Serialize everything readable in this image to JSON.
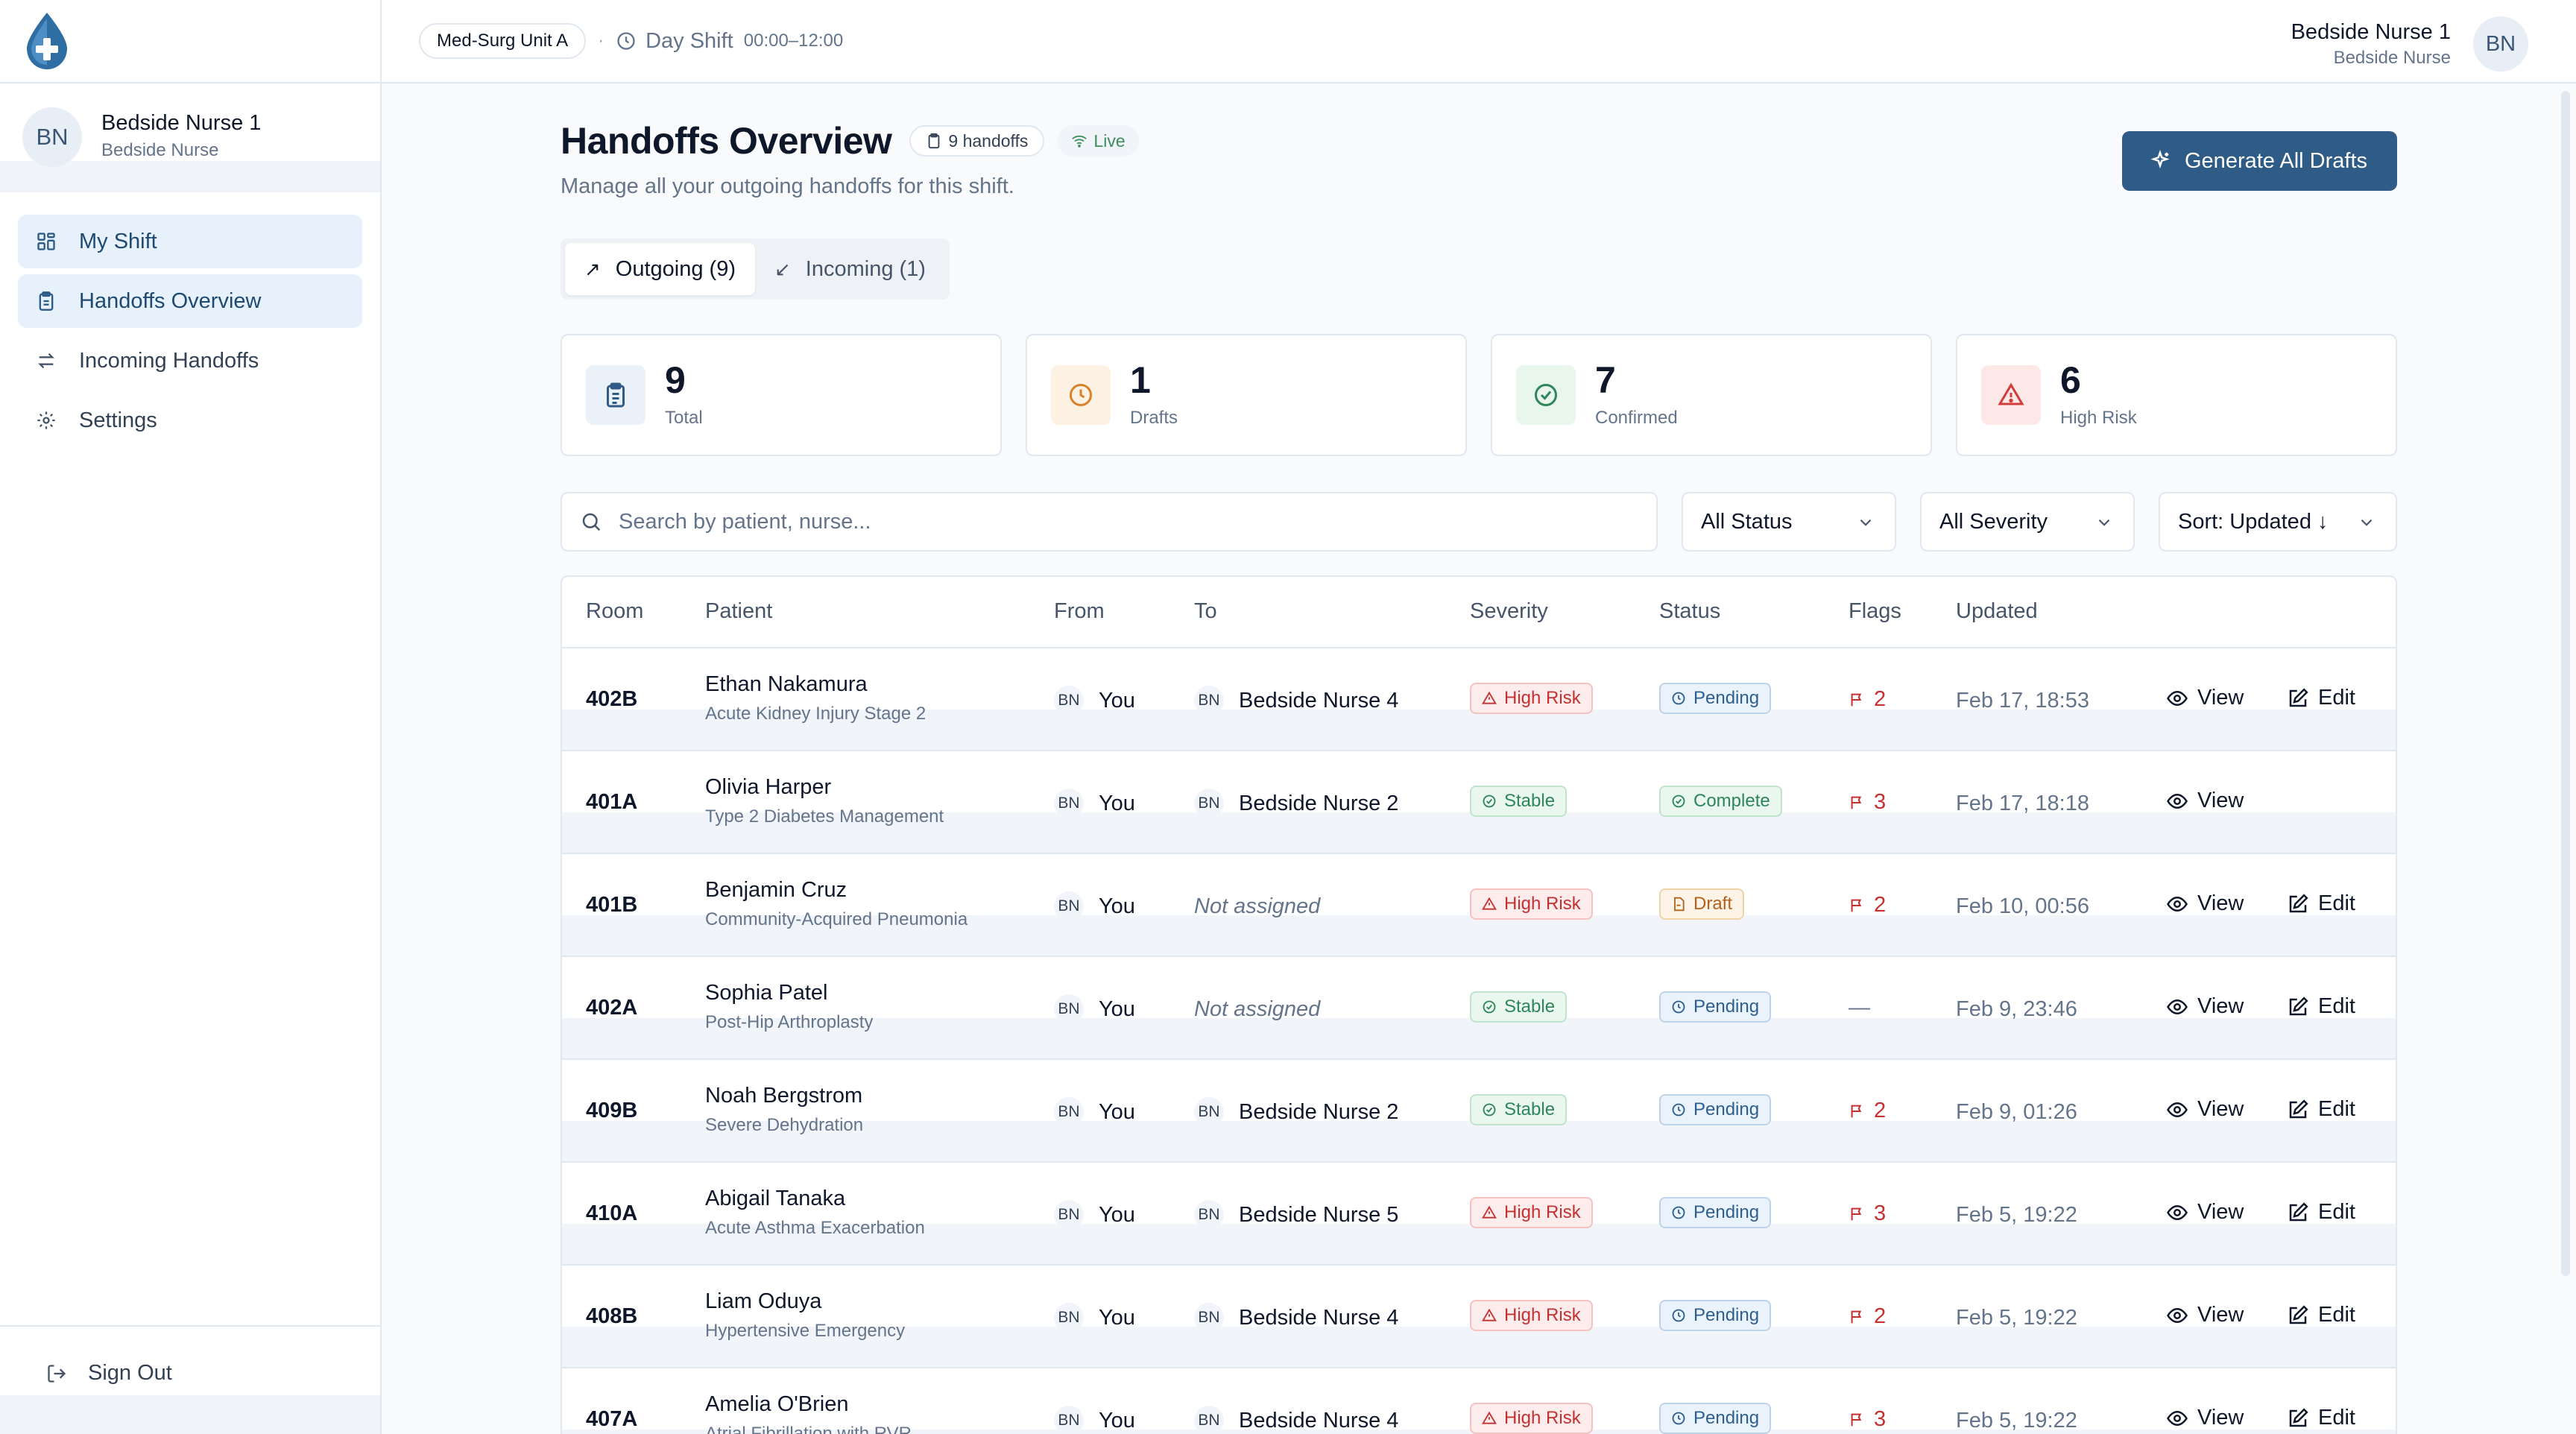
{
  "sidebar": {
    "user": {
      "initials": "BN",
      "name": "Bedside Nurse 1",
      "role": "Bedside Nurse"
    },
    "nav": [
      {
        "label": "My Shift",
        "icon": "grid-icon",
        "active": true
      },
      {
        "label": "Handoffs Overview",
        "icon": "clipboard-icon",
        "active": true
      },
      {
        "label": "Incoming Handoffs",
        "icon": "swap-icon",
        "active": false
      },
      {
        "label": "Settings",
        "icon": "gear-icon",
        "active": false
      }
    ],
    "signout_label": "Sign Out"
  },
  "topbar": {
    "unit": "Med-Surg Unit A",
    "separator": "·",
    "shift_label": "Day Shift",
    "shift_time": "00:00–12:00",
    "user_name": "Bedside Nurse 1",
    "user_role": "Bedside Nurse",
    "user_initials": "BN"
  },
  "header": {
    "title": "Handoffs Overview",
    "count_badge": "9 handoffs",
    "live_label": "Live",
    "subtitle": "Manage all your outgoing handoffs for this shift.",
    "generate_button": "Generate All Drafts"
  },
  "tabs": [
    {
      "label": "Outgoing (9)",
      "active": true
    },
    {
      "label": "Incoming (1)",
      "active": false
    }
  ],
  "stats": [
    {
      "value": "9",
      "label": "Total",
      "icon": "clipboard-icon",
      "color": "#2f5c86",
      "bg": "#eaf1f8"
    },
    {
      "value": "1",
      "label": "Drafts",
      "icon": "clock-icon",
      "color": "#d9822b",
      "bg": "#fdf1e4"
    },
    {
      "value": "7",
      "label": "Confirmed",
      "icon": "check-circle-icon",
      "color": "#2f855a",
      "bg": "#e8f6ec"
    },
    {
      "value": "6",
      "label": "High Risk",
      "icon": "warning-icon",
      "color": "#d23b3b",
      "bg": "#fde8e8"
    }
  ],
  "filters": {
    "search_placeholder": "Search by patient, nurse...",
    "status": "All Status",
    "severity": "All Severity",
    "sort": "Sort: Updated ↓"
  },
  "table": {
    "columns": [
      "Room",
      "Patient",
      "From",
      "To",
      "Severity",
      "Status",
      "Flags",
      "Updated"
    ],
    "view_label": "View",
    "edit_label": "Edit",
    "rows": [
      {
        "room": "402B",
        "patient": "Ethan Nakamura",
        "diagnosis": "Acute Kidney Injury Stage 2",
        "from_initials": "BN",
        "from": "You",
        "to_initials": "BN",
        "to": "Bedside Nurse 4",
        "severity": "High Risk",
        "status": "Pending",
        "flags": "2",
        "updated": "Feb 17, 18:53",
        "editable": true
      },
      {
        "room": "401A",
        "patient": "Olivia Harper",
        "diagnosis": "Type 2 Diabetes Management",
        "from_initials": "BN",
        "from": "You",
        "to_initials": "BN",
        "to": "Bedside Nurse 2",
        "severity": "Stable",
        "status": "Complete",
        "flags": "3",
        "updated": "Feb 17, 18:18",
        "editable": false
      },
      {
        "room": "401B",
        "patient": "Benjamin Cruz",
        "diagnosis": "Community-Acquired Pneumonia",
        "from_initials": "BN",
        "from": "You",
        "to_initials": "",
        "to": "Not assigned",
        "severity": "High Risk",
        "status": "Draft",
        "flags": "2",
        "updated": "Feb 10, 00:56",
        "editable": true
      },
      {
        "room": "402A",
        "patient": "Sophia Patel",
        "diagnosis": "Post-Hip Arthroplasty",
        "from_initials": "BN",
        "from": "You",
        "to_initials": "",
        "to": "Not assigned",
        "severity": "Stable",
        "status": "Pending",
        "flags": "—",
        "updated": "Feb 9, 23:46",
        "editable": true
      },
      {
        "room": "409B",
        "patient": "Noah Bergstrom",
        "diagnosis": "Severe Dehydration",
        "from_initials": "BN",
        "from": "You",
        "to_initials": "BN",
        "to": "Bedside Nurse 2",
        "severity": "Stable",
        "status": "Pending",
        "flags": "2",
        "updated": "Feb 9, 01:26",
        "editable": true
      },
      {
        "room": "410A",
        "patient": "Abigail Tanaka",
        "diagnosis": "Acute Asthma Exacerbation",
        "from_initials": "BN",
        "from": "You",
        "to_initials": "BN",
        "to": "Bedside Nurse 5",
        "severity": "High Risk",
        "status": "Pending",
        "flags": "3",
        "updated": "Feb 5, 19:22",
        "editable": true
      },
      {
        "room": "408B",
        "patient": "Liam Oduya",
        "diagnosis": "Hypertensive Emergency",
        "from_initials": "BN",
        "from": "You",
        "to_initials": "BN",
        "to": "Bedside Nurse 4",
        "severity": "High Risk",
        "status": "Pending",
        "flags": "2",
        "updated": "Feb 5, 19:22",
        "editable": true
      },
      {
        "room": "407A",
        "patient": "Amelia O'Brien",
        "diagnosis": "Atrial Fibrillation with RVR",
        "from_initials": "BN",
        "from": "You",
        "to_initials": "BN",
        "to": "Bedside Nurse 4",
        "severity": "High Risk",
        "status": "Pending",
        "flags": "3",
        "updated": "Feb 5, 19:22",
        "editable": true
      }
    ]
  },
  "colors": {
    "accent": "#2f5c86",
    "high_risk": "#c53030",
    "stable": "#2f855a",
    "pending": "#2d5f8e",
    "draft": "#b4621a"
  }
}
